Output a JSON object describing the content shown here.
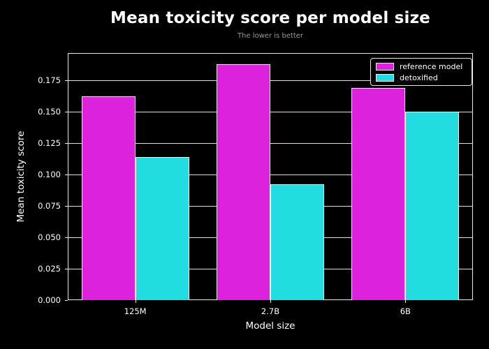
{
  "chart_data": {
    "type": "bar",
    "title": "Mean toxicity score per model size",
    "subtitle": "The lower is better",
    "xlabel": "Model size",
    "ylabel": "Mean toxicity score",
    "categories": [
      "125M",
      "2.7B",
      "6B"
    ],
    "series": [
      {
        "name": "reference model",
        "color": "#DD22DD",
        "values": [
          0.162,
          0.188,
          0.169
        ]
      },
      {
        "name": "detoxified",
        "color": "#22DDE0",
        "values": [
          0.114,
          0.092,
          0.15
        ]
      }
    ],
    "ylim": [
      0,
      0.1967
    ],
    "ytick_labels": [
      "0.000",
      "0.025",
      "0.050",
      "0.075",
      "0.100",
      "0.125",
      "0.150",
      "0.175"
    ],
    "grid": "horizontal",
    "legend_position": "upper right",
    "colors": {
      "background": "#000000",
      "text": "#FFFFFF",
      "subtitle_text": "#999999",
      "axes": "#E8E8E8",
      "grid": "#E0E0E0",
      "bar_edge": "#F2F2F2"
    }
  }
}
